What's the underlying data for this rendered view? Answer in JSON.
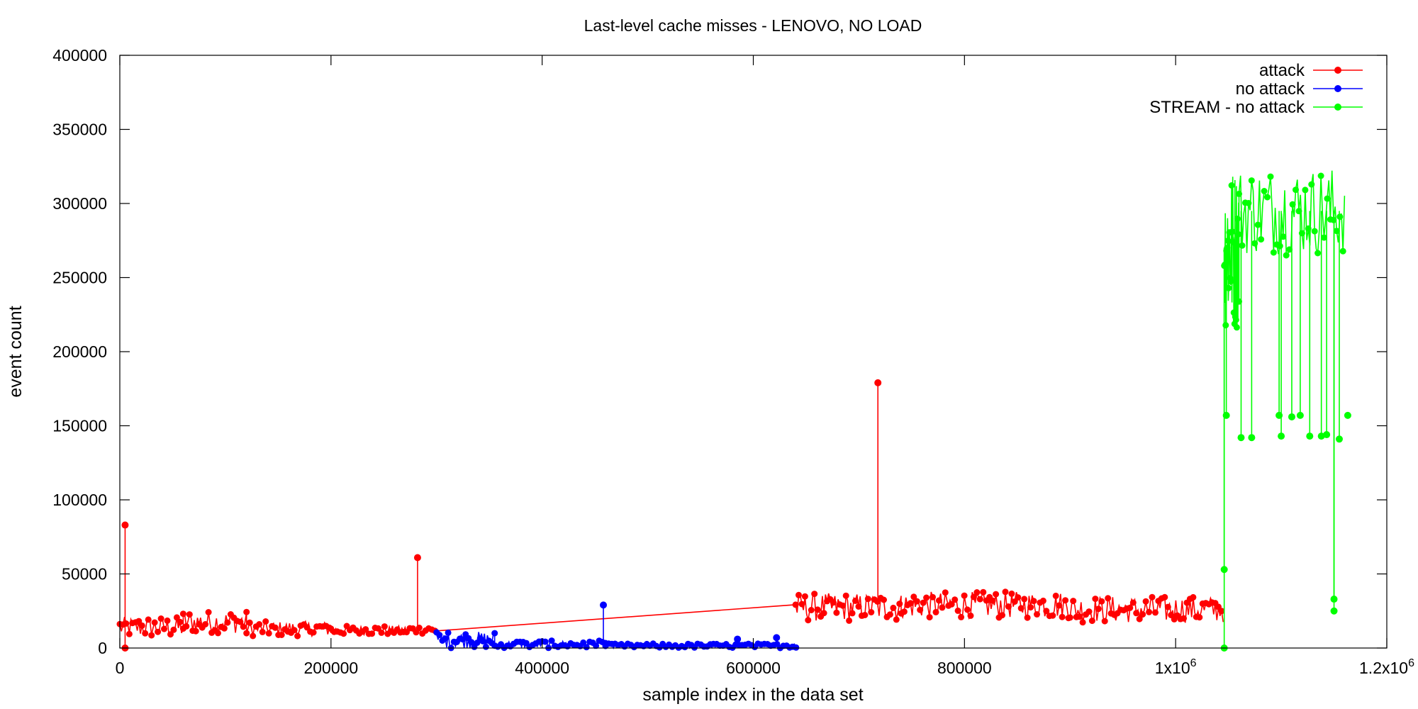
{
  "chart_data": {
    "type": "line",
    "title": "Last-level cache misses - LENOVO, NO LOAD",
    "xlabel": "sample index in the data set",
    "ylabel": "event count",
    "xlim": [
      0,
      1200000
    ],
    "ylim": [
      0,
      400000
    ],
    "x_ticks": [
      {
        "value": 0,
        "label": "0"
      },
      {
        "value": 200000,
        "label": "200000"
      },
      {
        "value": 400000,
        "label": "400000"
      },
      {
        "value": 600000,
        "label": "600000"
      },
      {
        "value": 800000,
        "label": "800000"
      },
      {
        "value": 1000000,
        "label": "1x10",
        "sup": "6"
      },
      {
        "value": 1200000,
        "label": "1.2x10",
        "sup": "6"
      }
    ],
    "y_ticks": [
      {
        "value": 0,
        "label": "0"
      },
      {
        "value": 50000,
        "label": "50000"
      },
      {
        "value": 100000,
        "label": "100000"
      },
      {
        "value": 150000,
        "label": "150000"
      },
      {
        "value": 200000,
        "label": "200000"
      },
      {
        "value": 250000,
        "label": "250000"
      },
      {
        "value": 300000,
        "label": "300000"
      },
      {
        "value": 350000,
        "label": "350000"
      },
      {
        "value": 400000,
        "label": "400000"
      }
    ],
    "grid": false,
    "legend_position": "top-right",
    "series": [
      {
        "name": "attack",
        "color": "#ff0000",
        "bands": [
          {
            "x": [
              0,
              60000
            ],
            "y": [
              7000,
              21000
            ]
          },
          {
            "x": [
              60000,
              120000
            ],
            "y": [
              10000,
              25000
            ]
          },
          {
            "x": [
              120000,
              200000
            ],
            "y": [
              8000,
              18000
            ]
          },
          {
            "x": [
              200000,
              300000
            ],
            "y": [
              9000,
              15000
            ]
          },
          {
            "x": [
              640000,
              740000
            ],
            "y": [
              18000,
              37000
            ]
          },
          {
            "x": [
              740000,
              900000
            ],
            "y": [
              20000,
              38000
            ]
          },
          {
            "x": [
              900000,
              1045000
            ],
            "y": [
              17000,
              35000
            ]
          }
        ],
        "spikes": [
          {
            "x": 5000,
            "y": 83000
          },
          {
            "x": 282000,
            "y": 61000
          },
          {
            "x": 718000,
            "y": 179000
          },
          {
            "x": 5000,
            "y": 0
          }
        ]
      },
      {
        "name": "no attack",
        "color": "#0000ff",
        "bands": [
          {
            "x": [
              300000,
              355000
            ],
            "y": [
              0,
              11000
            ]
          },
          {
            "x": [
              355000,
              460000
            ],
            "y": [
              0,
              5000
            ]
          },
          {
            "x": [
              460000,
              642000
            ],
            "y": [
              0,
              3000
            ]
          }
        ],
        "spikes": [
          {
            "x": 458000,
            "y": 29000
          },
          {
            "x": 585000,
            "y": 6000
          },
          {
            "x": 622000,
            "y": 7000
          }
        ]
      },
      {
        "name": "STREAM - no attack",
        "color": "#00ff00",
        "bands": [
          {
            "x": [
              1046000,
              1060000
            ],
            "y": [
              215000,
              325000
            ]
          },
          {
            "x": [
              1060000,
              1160000
            ],
            "y": [
              265000,
              325000
            ]
          }
        ],
        "spikes": [
          {
            "x": 1046000,
            "y": 0
          },
          {
            "x": 1046000,
            "y": 53000
          },
          {
            "x": 1048000,
            "y": 157000
          },
          {
            "x": 1062000,
            "y": 142000
          },
          {
            "x": 1072000,
            "y": 142000
          },
          {
            "x": 1098000,
            "y": 157000
          },
          {
            "x": 1100000,
            "y": 143000
          },
          {
            "x": 1110000,
            "y": 156000
          },
          {
            "x": 1118000,
            "y": 157000
          },
          {
            "x": 1127000,
            "y": 143000
          },
          {
            "x": 1138000,
            "y": 143000
          },
          {
            "x": 1143000,
            "y": 144000
          },
          {
            "x": 1150000,
            "y": 25000
          },
          {
            "x": 1150000,
            "y": 33000
          },
          {
            "x": 1155000,
            "y": 141000
          },
          {
            "x": 1163000,
            "y": 157000
          }
        ]
      }
    ]
  }
}
